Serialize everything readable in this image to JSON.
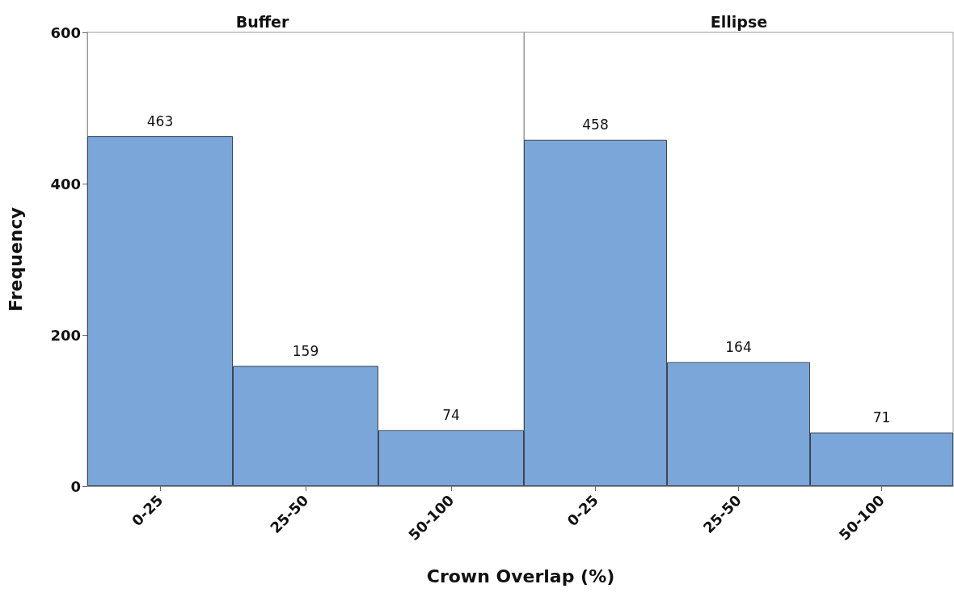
{
  "chart_data": [
    {
      "type": "bar",
      "title": "Buffer",
      "xlabel": "Crown Overlap (%)",
      "ylabel": "Frequency",
      "categories": [
        "0-25",
        "25-50",
        "50-100"
      ],
      "values": [
        463,
        159,
        74
      ],
      "color": "#7ba6d9",
      "ylim": [
        0,
        600
      ],
      "yticks": [
        0,
        200,
        400,
        600
      ],
      "data_labels": true
    },
    {
      "type": "bar",
      "title": "Ellipse",
      "categories": [
        "0-25",
        "25-50",
        "50-100"
      ],
      "values": [
        458,
        164,
        71
      ],
      "color": "#7ba6d9",
      "ylim": [
        0,
        600
      ],
      "yticks": [
        0,
        200,
        400,
        600
      ],
      "data_labels": true,
      "tick_labels": "x"
    }
  ]
}
